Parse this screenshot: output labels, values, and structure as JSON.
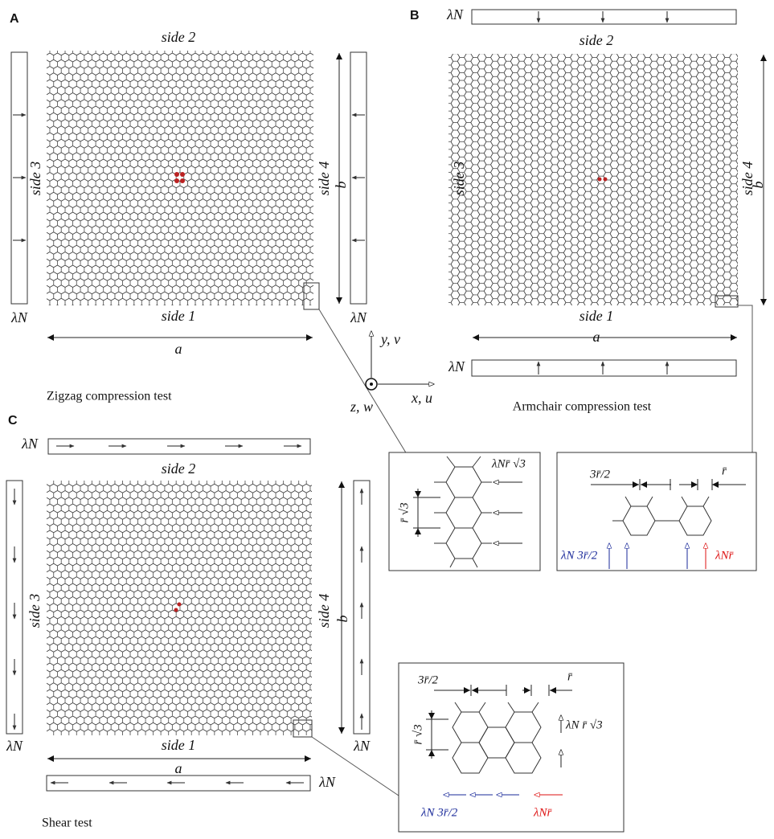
{
  "panels": [
    {
      "letter": "A",
      "caption": "Zigzag compression test",
      "side_1": "side 1",
      "side_2": "side 2",
      "side_3": "side 3",
      "side_4": "side 4",
      "load": "λN",
      "width": "a",
      "height": "b"
    },
    {
      "letter": "B",
      "caption": "Armchair compression test",
      "side_1": "side 1",
      "side_2": "side 2",
      "side_3": "side 3",
      "side_4": "side 4",
      "load": "λN",
      "width": "a",
      "height": "b"
    },
    {
      "letter": "C",
      "caption": "Shear test",
      "side_1": "side 1",
      "side_2": "side 2",
      "side_3": "side 3",
      "side_4": "side 4",
      "load": "λN",
      "width": "a",
      "height": "b"
    }
  ],
  "axes": {
    "y": "y, v",
    "x": "x, u",
    "z": "z, w"
  },
  "insets": [
    {
      "load": "λNr̄ √3",
      "spacing": "r̄ √3"
    },
    {
      "spacing_wide": "3r̄/2",
      "spacing_narrow": "r̄",
      "load_blue": "λN 3r̄/2",
      "load_red": "λNr̄"
    },
    {
      "spacing_wide": "3r̄/2",
      "spacing_narrow": "r̄",
      "spacing_vertical": "r̄ √3",
      "load_vertical": "λN r̄ √3",
      "load_blue": "λN 3r̄/2",
      "load_red": "λNr̄"
    }
  ]
}
